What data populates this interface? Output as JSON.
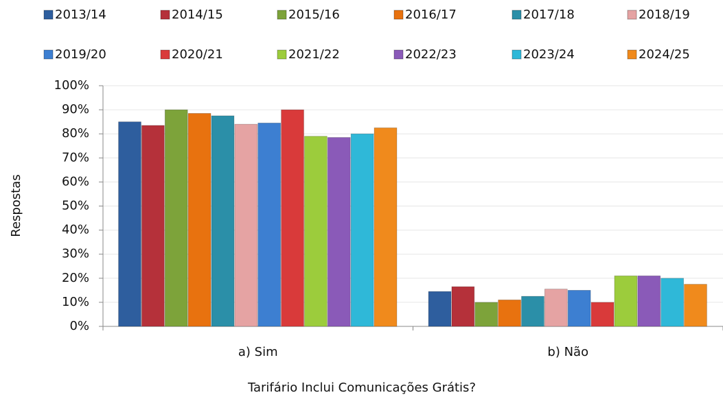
{
  "chart_data": {
    "type": "bar",
    "x_label": "Tarifário Inclui Comunicações Grátis?",
    "y_label": "Respostas",
    "categories": [
      "a) Sim",
      "b) Não"
    ],
    "series": [
      {
        "name": "2013/14",
        "color": "#2e5e9e",
        "values": [
          85,
          14.5
        ]
      },
      {
        "name": "2014/15",
        "color": "#b5313a",
        "values": [
          83.5,
          16.5
        ]
      },
      {
        "name": "2015/16",
        "color": "#7da33a",
        "values": [
          90,
          10
        ]
      },
      {
        "name": "2016/17",
        "color": "#e8720f",
        "values": [
          88.5,
          11
        ]
      },
      {
        "name": "2017/18",
        "color": "#2b8fa8",
        "values": [
          87.5,
          12.5
        ]
      },
      {
        "name": "2018/19",
        "color": "#e5a3a3",
        "values": [
          84,
          15.5
        ]
      },
      {
        "name": "2019/20",
        "color": "#3d7fd1",
        "values": [
          84.5,
          15
        ]
      },
      {
        "name": "2020/21",
        "color": "#d93a3a",
        "values": [
          90,
          10
        ]
      },
      {
        "name": "2021/22",
        "color": "#9ccc3c",
        "values": [
          79,
          21
        ]
      },
      {
        "name": "2022/23",
        "color": "#8a5ab8",
        "values": [
          78.5,
          21
        ]
      },
      {
        "name": "2023/24",
        "color": "#2fb8d8",
        "values": [
          80,
          20
        ]
      },
      {
        "name": "2024/25",
        "color": "#f08a1c",
        "values": [
          82.5,
          17.5
        ]
      }
    ],
    "ylim": [
      0,
      100
    ],
    "yticks": [
      {
        "value": 0,
        "label": "0%"
      },
      {
        "value": 10,
        "label": "10%"
      },
      {
        "value": 20,
        "label": "20%"
      },
      {
        "value": 30,
        "label": "30%"
      },
      {
        "value": 40,
        "label": "40%"
      },
      {
        "value": 50,
        "label": "50%"
      },
      {
        "value": 60,
        "label": "60%"
      },
      {
        "value": 70,
        "label": "70%"
      },
      {
        "value": 80,
        "label": "80%"
      },
      {
        "value": 90,
        "label": "90%"
      },
      {
        "value": 100,
        "label": "100%"
      }
    ],
    "grid": true
  }
}
